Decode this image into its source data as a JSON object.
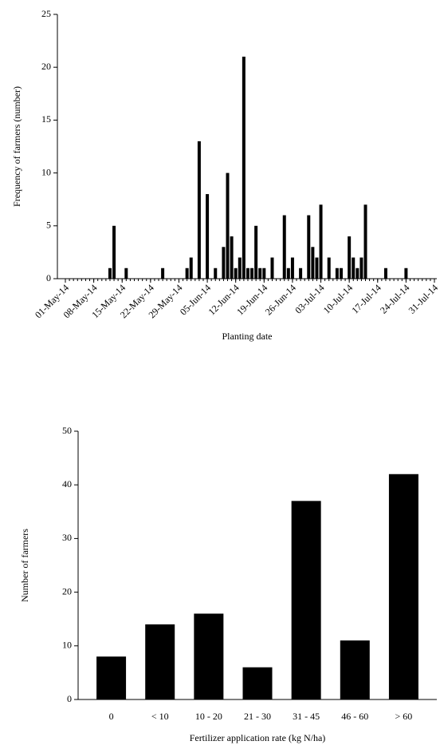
{
  "chart_data": [
    {
      "type": "bar",
      "x_label": "Planting date",
      "y_label": "Frequency of farmers (number)",
      "color": "#000000",
      "x": [
        "12-May-14",
        "13-May-14",
        "16-May-14",
        "25-May-14",
        "31-May-14",
        "01-Jun-14",
        "03-Jun-14",
        "05-Jun-14",
        "07-Jun-14",
        "09-Jun-14",
        "10-Jun-14",
        "11-Jun-14",
        "12-Jun-14",
        "13-Jun-14",
        "14-Jun-14",
        "15-Jun-14",
        "16-Jun-14",
        "17-Jun-14",
        "18-Jun-14",
        "19-Jun-14",
        "21-Jun-14",
        "24-Jun-14",
        "25-Jun-14",
        "26-Jun-14",
        "28-Jun-14",
        "30-Jun-14",
        "01-Jul-14",
        "02-Jul-14",
        "03-Jul-14",
        "05-Jul-14",
        "07-Jul-14",
        "08-Jul-14",
        "10-Jul-14",
        "11-Jul-14",
        "12-Jul-14",
        "13-Jul-14",
        "14-Jul-14",
        "19-Jul-14",
        "24-Jul-14"
      ],
      "values": [
        1,
        5,
        1,
        1,
        1,
        2,
        13,
        8,
        1,
        3,
        10,
        4,
        1,
        2,
        21,
        1,
        1,
        5,
        1,
        1,
        2,
        6,
        1,
        2,
        1,
        6,
        3,
        2,
        7,
        2,
        1,
        1,
        4,
        2,
        1,
        2,
        7,
        1,
        1
      ],
      "xlim": [
        "01-May-14",
        "31-Jul-14"
      ],
      "xticks": [
        "01-May-14",
        "08-May-14",
        "15-May-14",
        "22-May-14",
        "29-May-14",
        "05-Jun-14",
        "12-Jun-14",
        "19-Jun-14",
        "26-Jun-14",
        "03-Jul-14",
        "10-Jul-14",
        "17-Jul-14",
        "24-Jul-14",
        "31-Jul-14"
      ],
      "ylim": [
        0,
        25
      ],
      "yticks": [
        0,
        5,
        10,
        15,
        20,
        25
      ]
    },
    {
      "type": "bar",
      "x_label": "Fertilizer application rate (kg N/ha)",
      "y_label": "Number of farmers",
      "color": "#000000",
      "categories": [
        "0",
        "< 10",
        "10  - 20",
        "21  - 30",
        "31  - 45",
        "46  - 60",
        "> 60"
      ],
      "values": [
        8,
        14,
        16,
        6,
        37,
        11,
        42
      ],
      "ylim": [
        0,
        50
      ],
      "yticks": [
        0,
        10,
        20,
        30,
        40,
        50
      ]
    }
  ]
}
